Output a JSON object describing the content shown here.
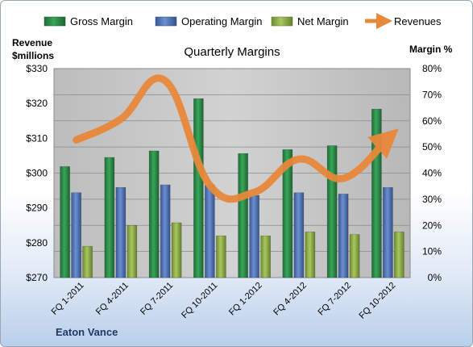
{
  "chart_data": {
    "type": "bar+line",
    "title": "Quarterly Margins",
    "left_axis_title": [
      "Revenue",
      "$millions"
    ],
    "right_axis_title": "Margin %",
    "footer_label": "Eaton Vance",
    "categories": [
      "FQ 1-2011",
      "FQ 4-2011",
      "FQ 7-2011",
      "FQ 10-2011",
      "FQ 1-2012",
      "FQ 4-2012",
      "FQ 7-2012",
      "FQ 10-2012"
    ],
    "left_ylim": [
      270,
      330
    ],
    "left_ticks": [
      "$270",
      "$280",
      "$290",
      "$300",
      "$310",
      "$320",
      "$330"
    ],
    "right_ylim": [
      0,
      80
    ],
    "right_ticks": [
      "0%",
      "10%",
      "20%",
      "30%",
      "40%",
      "50%",
      "60%",
      "70%",
      "80%"
    ],
    "grid": true,
    "legend_position": "top",
    "series": [
      {
        "name": "Gross Margin",
        "kind": "bar",
        "axis": "right",
        "color": "#2e8b4a",
        "values": [
          42.5,
          46.0,
          48.5,
          68.5,
          47.5,
          49.0,
          50.5,
          64.5
        ]
      },
      {
        "name": "Operating Margin",
        "kind": "bar",
        "axis": "right",
        "color": "#4a6fb5",
        "values": [
          32.5,
          34.5,
          35.5,
          35.5,
          31.5,
          32.5,
          32.0,
          34.5
        ]
      },
      {
        "name": "Net Margin",
        "kind": "bar",
        "axis": "right",
        "color": "#8fb04a",
        "values": [
          12.0,
          20.0,
          21.0,
          16.0,
          16.0,
          17.5,
          16.5,
          17.5
        ]
      },
      {
        "name": "Revenues",
        "kind": "line",
        "axis": "left",
        "color": "#e8883a",
        "values": [
          309.5,
          315.5,
          326.5,
          296.5,
          294.5,
          304.0,
          298.5,
          310.0
        ]
      }
    ]
  }
}
